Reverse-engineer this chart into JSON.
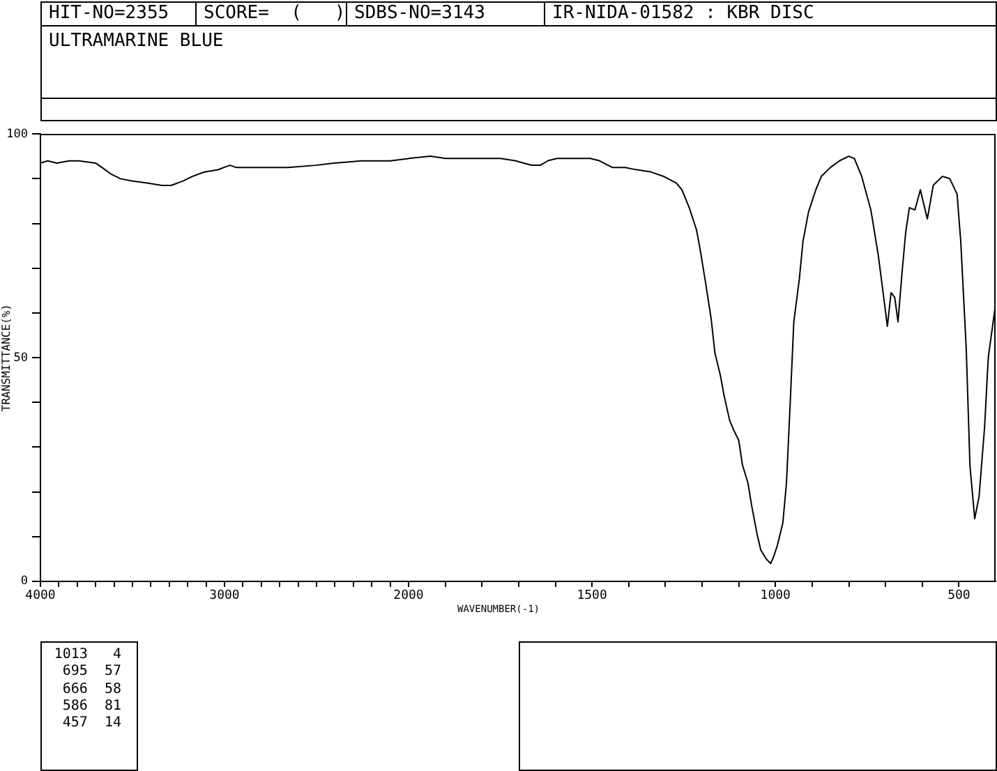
{
  "chart_data": [
    {
      "type": "line",
      "title": "ULTRAMARINE BLUE",
      "ylabel": "TRANSMITTANCE(%)",
      "color": "#000000",
      "x": [
        4000,
        3960,
        3910,
        3845,
        3790,
        3700,
        3665,
        3615,
        3565,
        3505,
        3415,
        3340,
        3290,
        3225,
        3175,
        3110,
        3035,
        3005,
        2970,
        2935,
        2885,
        2760,
        2655,
        2505,
        2405,
        2255,
        2100,
        2000
      ],
      "values": [
        93.5,
        94,
        93.5,
        94,
        94,
        93.5,
        92.5,
        91,
        90,
        89.5,
        89,
        88.5,
        88.5,
        89.5,
        90.5,
        91.5,
        92,
        92.5,
        93,
        92.5,
        92.5,
        92.5,
        92.5,
        93,
        93.5,
        94,
        94,
        94.5
      ],
      "xlim": [
        4000,
        2000
      ],
      "xticks": [
        4000,
        {
          "value": 3900,
          "label": null
        },
        {
          "value": 3800,
          "label": null
        },
        {
          "value": 3700,
          "label": null
        },
        {
          "value": 3600,
          "label": null
        },
        {
          "value": 3500,
          "label": null
        },
        {
          "value": 3400,
          "label": null
        },
        {
          "value": 3300,
          "label": null
        },
        {
          "value": 3200,
          "label": null
        },
        {
          "value": 3100,
          "label": null
        },
        3000,
        {
          "value": 2900,
          "label": null
        },
        {
          "value": 2800,
          "label": null
        },
        {
          "value": 2700,
          "label": null
        },
        {
          "value": 2600,
          "label": null
        },
        {
          "value": 2500,
          "label": null
        },
        {
          "value": 2400,
          "label": null
        },
        {
          "value": 2300,
          "label": null
        },
        {
          "value": 2200,
          "label": null
        },
        {
          "value": 2100,
          "label": null
        },
        2000
      ],
      "ylim": [
        0,
        100
      ],
      "yticks": [
        0,
        {
          "value": 10,
          "label": null
        },
        {
          "value": 20,
          "label": null
        },
        {
          "value": 30,
          "label": null
        },
        {
          "value": 40,
          "label": null
        },
        50,
        {
          "value": 60,
          "label": null
        },
        {
          "value": 70,
          "label": null
        },
        {
          "value": 80,
          "label": null
        },
        {
          "value": 90,
          "label": null
        },
        100
      ],
      "annotations": [
        "HIT-NO=2355",
        "SCORE=  (   )",
        "SDBS-NO=3143",
        "IR-NIDA-01582 : KBR DISC"
      ]
    },
    {
      "type": "line",
      "xlabel": "WAVENUMBER(-1)",
      "color": "#000000",
      "x": [
        2000,
        1940,
        1900,
        1835,
        1795,
        1750,
        1710,
        1665,
        1640,
        1620,
        1595,
        1525,
        1505,
        1480,
        1445,
        1410,
        1380,
        1340,
        1305,
        1270,
        1255,
        1235,
        1215,
        1205,
        1190,
        1175,
        1165,
        1150,
        1140,
        1125,
        1115,
        1100,
        1090,
        1075,
        1065,
        1050,
        1040,
        1025,
        1013,
        1005,
        995,
        980,
        970,
        960,
        950,
        935,
        925,
        910,
        890,
        875,
        850,
        825,
        800,
        785,
        765,
        740,
        720,
        705,
        695,
        685,
        675,
        666,
        655,
        645,
        635,
        620,
        605,
        598,
        586,
        570,
        545,
        525,
        505,
        495,
        480,
        470,
        457,
        445,
        430,
        420,
        400
      ],
      "values": [
        94.5,
        95,
        94.5,
        94.5,
        94.5,
        94.5,
        94,
        93,
        93,
        94,
        94.5,
        94.5,
        94.5,
        94,
        92.5,
        92.5,
        92,
        91.5,
        90.5,
        89,
        87.5,
        83.5,
        78.5,
        74,
        66.5,
        58.5,
        51,
        46,
        41.5,
        36,
        34,
        31.5,
        26,
        22,
        17,
        10.5,
        7,
        5,
        4,
        5.5,
        8,
        13,
        22,
        39.5,
        58,
        67.5,
        76,
        82.5,
        87.5,
        90.5,
        92.5,
        94,
        95,
        94.5,
        90.5,
        83,
        73,
        63.5,
        57,
        64.5,
        63.5,
        58,
        69,
        78,
        83.5,
        83,
        87.5,
        85,
        81,
        88.5,
        90.5,
        90,
        86.5,
        76,
        52,
        26,
        14,
        19,
        34.5,
        50,
        62
      ],
      "xlim": [
        2000,
        400
      ],
      "xticks": [
        {
          "value": 1900,
          "label": null
        },
        {
          "value": 1800,
          "label": null
        },
        {
          "value": 1700,
          "label": null
        },
        {
          "value": 1600,
          "label": null
        },
        1500,
        {
          "value": 1400,
          "label": null
        },
        {
          "value": 1300,
          "label": null
        },
        {
          "value": 1200,
          "label": null
        },
        {
          "value": 1100,
          "label": null
        },
        1000,
        {
          "value": 900,
          "label": null
        },
        {
          "value": 800,
          "label": null
        },
        {
          "value": 700,
          "label": null
        },
        {
          "value": 600,
          "label": null
        },
        500
      ],
      "ylim": [
        0,
        100
      ],
      "tick_labels": "x",
      "annotations": [
        "1013   4",
        "695  57",
        "666  58",
        "586  81",
        "457  14"
      ]
    }
  ]
}
